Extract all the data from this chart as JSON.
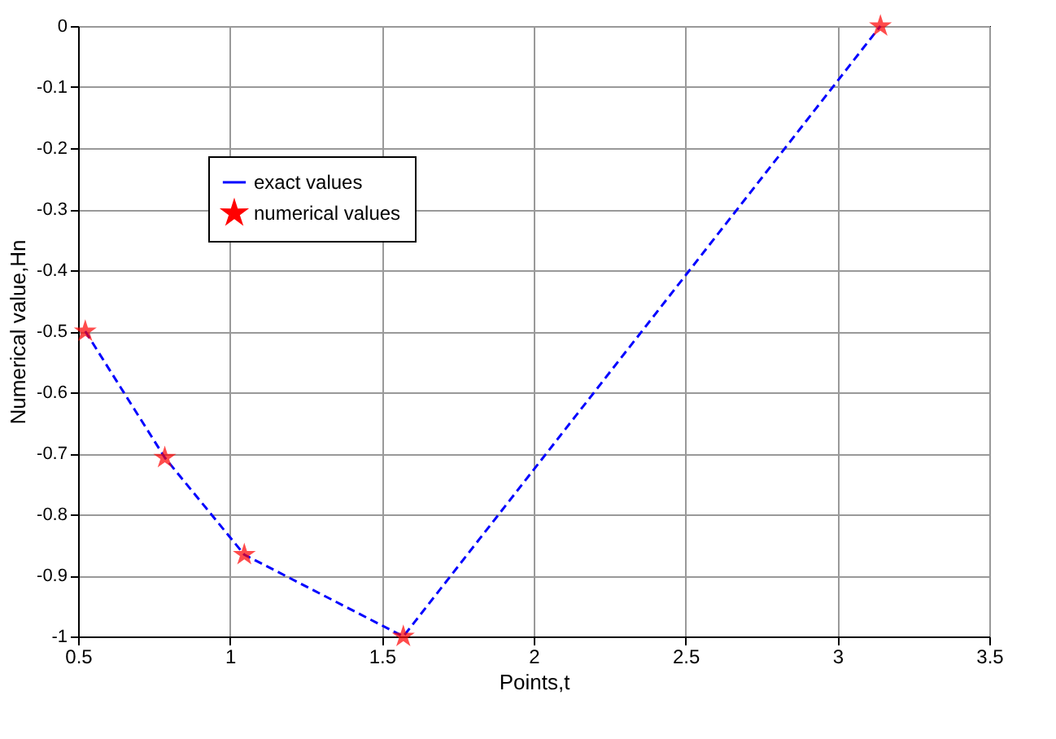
{
  "chart_data": {
    "type": "line",
    "xlabel": "Points,t",
    "ylabel": "Numerical value,Hn",
    "x": [
      0.5236,
      0.7854,
      1.0472,
      1.5708,
      3.1416
    ],
    "series": [
      {
        "name": "exact values",
        "type": "line",
        "color": "#0000ff",
        "line_style": "dashed",
        "marker": "none",
        "values": [
          -0.5,
          -0.707,
          -0.866,
          -1,
          0
        ]
      },
      {
        "name": "numerical values",
        "type": "scatter",
        "color": "#ff0000",
        "marker": "star",
        "values": [
          -0.5,
          -0.707,
          -0.866,
          -1,
          0
        ]
      }
    ],
    "xlim": [
      0.5,
      3.5
    ],
    "xticks": [
      0.5,
      1,
      1.5,
      2,
      2.5,
      3,
      3.5
    ],
    "ylim": [
      -1,
      0
    ],
    "yticks": [
      -1,
      -0.9,
      -0.8,
      -0.7,
      -0.6,
      -0.5,
      -0.4,
      -0.3,
      -0.2,
      -0.1,
      0
    ],
    "grid": true,
    "legend": "top left"
  }
}
